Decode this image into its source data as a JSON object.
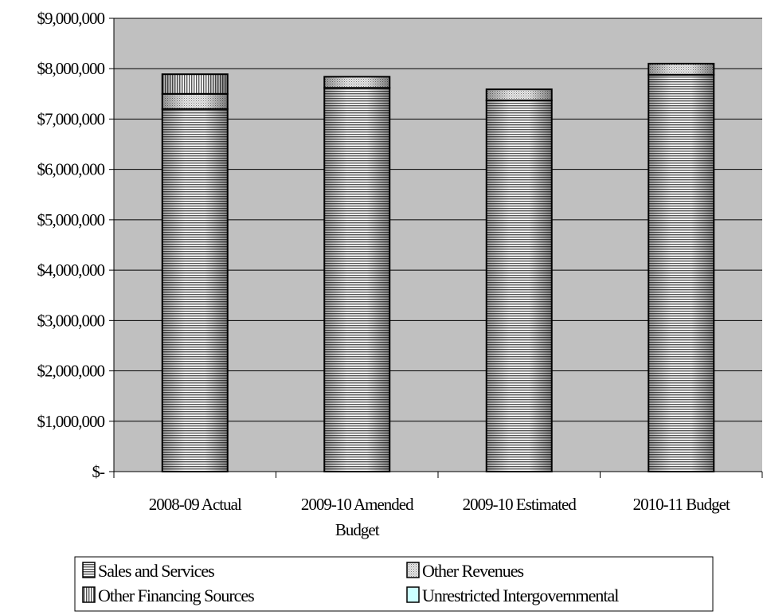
{
  "chart_data": {
    "type": "bar",
    "stacked": true,
    "title": "",
    "xlabel": "",
    "ylabel": "",
    "ylim": [
      0,
      9000000
    ],
    "y_ticks": [
      0,
      1000000,
      2000000,
      3000000,
      4000000,
      5000000,
      6000000,
      7000000,
      8000000,
      9000000
    ],
    "y_tick_labels": [
      "$-",
      "$1,000,000",
      "$2,000,000",
      "$3,000,000",
      "$4,000,000",
      "$5,000,000",
      "$6,000,000",
      "$7,000,000",
      "$8,000,000",
      "$9,000,000"
    ],
    "grid": true,
    "plot_background": "#c0c0c0",
    "categories": [
      [
        "2008-09 Actual"
      ],
      [
        "2009-10 Amended",
        "Budget"
      ],
      [
        "2009-10 Estimated"
      ],
      [
        "2010-11 Budget"
      ]
    ],
    "series": [
      {
        "name": "Sales and Services",
        "values": [
          7200000,
          7620000,
          7370000,
          7880000
        ],
        "pattern": "horizontal"
      },
      {
        "name": "Other Revenues",
        "values": [
          300000,
          220000,
          220000,
          220000
        ],
        "pattern": "dots"
      },
      {
        "name": "Other Financing Sources",
        "values": [
          390000,
          0,
          0,
          0
        ],
        "pattern": "vertical"
      },
      {
        "name": "Unrestricted Intergovernmental",
        "values": [
          0,
          0,
          0,
          0
        ],
        "pattern": "cyan"
      }
    ],
    "legend": {
      "placement": "bottom",
      "order": [
        "Sales and Services",
        "Other Revenues",
        "Other Financing Sources",
        "Unrestricted Intergovernmental"
      ]
    }
  }
}
